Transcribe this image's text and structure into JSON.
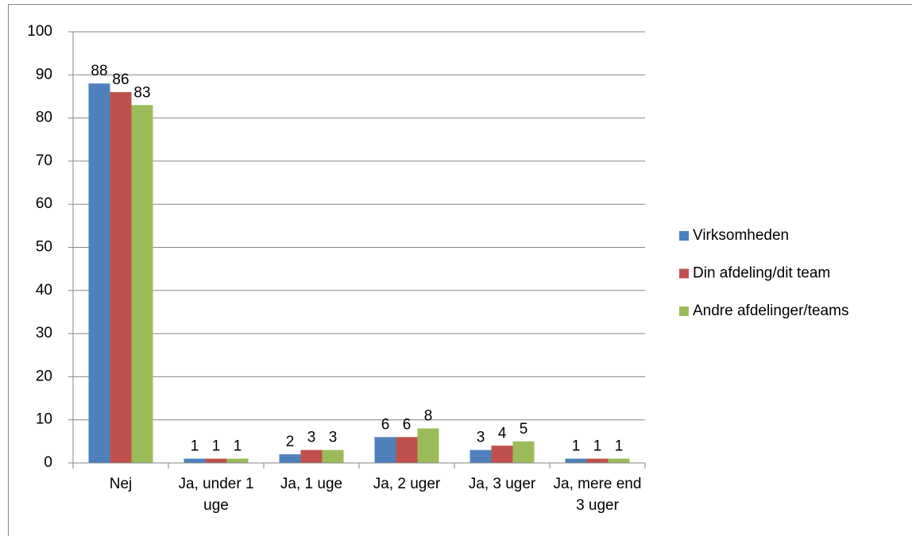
{
  "chart_data": {
    "type": "bar",
    "categories": [
      "Nej",
      "Ja, under 1 uge",
      "Ja, 1 uge",
      "Ja, 2 uger",
      "Ja, 3 uger",
      "Ja, mere end 3 uger"
    ],
    "series": [
      {
        "name": "Virksomheden",
        "color": "#4f81bd",
        "values": [
          88,
          1,
          2,
          6,
          3,
          1
        ]
      },
      {
        "name": "Din afdeling/dit team",
        "color": "#c0504d",
        "values": [
          86,
          1,
          3,
          6,
          4,
          1
        ]
      },
      {
        "name": "Andre afdelinger/teams",
        "color": "#9bbb59",
        "values": [
          83,
          1,
          3,
          8,
          5,
          1
        ]
      }
    ],
    "ylim": [
      0,
      100
    ],
    "yticks": [
      0,
      10,
      20,
      30,
      40,
      50,
      60,
      70,
      80,
      90,
      100
    ],
    "grid": true,
    "legend": "right"
  }
}
